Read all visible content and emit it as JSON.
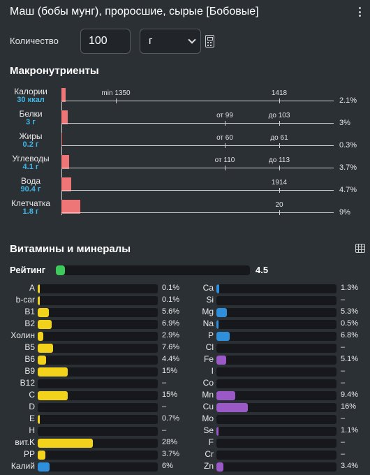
{
  "title": "Маш (бобы мунг), проросшие, сырые [Бобовые]",
  "quantity": {
    "label": "Количество",
    "value": "100",
    "unit": "г"
  },
  "macros": {
    "title": "Макронутриенты",
    "items": [
      {
        "name": "Калории",
        "value": "30 ккал",
        "pct": "2.1%",
        "fraction": 0.021,
        "ticks": [
          {
            "label": "min 1350",
            "pos": 0.2
          },
          {
            "label": "1418",
            "pos": 0.8
          }
        ]
      },
      {
        "name": "Белки",
        "value": "3 г",
        "pct": "3%",
        "fraction": 0.03,
        "ticks": [
          {
            "label": "от 99",
            "pos": 0.6
          },
          {
            "label": "до 103",
            "pos": 0.8
          }
        ]
      },
      {
        "name": "Жиры",
        "value": "0.2 г",
        "pct": "0.3%",
        "fraction": 0.003,
        "ticks": [
          {
            "label": "от 60",
            "pos": 0.6
          },
          {
            "label": "до 61",
            "pos": 0.8
          }
        ]
      },
      {
        "name": "Углеводы",
        "value": "4.1 г",
        "pct": "3.7%",
        "fraction": 0.037,
        "ticks": [
          {
            "label": "от 110",
            "pos": 0.6
          },
          {
            "label": "до 113",
            "pos": 0.8
          }
        ]
      },
      {
        "name": "Вода",
        "value": "90.4 г",
        "pct": "4.7%",
        "fraction": 0.047,
        "ticks": [
          {
            "label": "1914",
            "pos": 0.8
          }
        ]
      },
      {
        "name": "Клетчатка",
        "value": "1.8 г",
        "pct": "9%",
        "fraction": 0.09,
        "ticks": [
          {
            "label": "20",
            "pos": 0.8
          }
        ]
      }
    ]
  },
  "vitamins": {
    "title": "Витамины и минералы",
    "rating_label": "Рейтинг",
    "rating_value": "4.5",
    "rating_fraction": 0.045,
    "colors": {
      "vitamin": "#f2d21b",
      "mineral_blue": "#2f8fdb",
      "mineral_purple": "#9b59c8",
      "rating": "#3ec95d"
    },
    "left": [
      {
        "name": "A",
        "pct": "0.1%",
        "fraction": 0.001,
        "color": "vitamin"
      },
      {
        "name": "b-car",
        "pct": "0.1%",
        "fraction": 0.001,
        "color": "vitamin"
      },
      {
        "name": "B1",
        "pct": "5.6%",
        "fraction": 0.056,
        "color": "vitamin"
      },
      {
        "name": "B2",
        "pct": "6.9%",
        "fraction": 0.069,
        "color": "vitamin"
      },
      {
        "name": "Холин",
        "pct": "2.9%",
        "fraction": 0.029,
        "color": "vitamin"
      },
      {
        "name": "B5",
        "pct": "7.6%",
        "fraction": 0.076,
        "color": "vitamin"
      },
      {
        "name": "B6",
        "pct": "4.4%",
        "fraction": 0.044,
        "color": "vitamin"
      },
      {
        "name": "B9",
        "pct": "15%",
        "fraction": 0.15,
        "color": "vitamin"
      },
      {
        "name": "B12",
        "pct": "–",
        "fraction": 0,
        "color": "vitamin"
      },
      {
        "name": "C",
        "pct": "15%",
        "fraction": 0.15,
        "color": "vitamin"
      },
      {
        "name": "D",
        "pct": "–",
        "fraction": 0,
        "color": "vitamin"
      },
      {
        "name": "E",
        "pct": "0.7%",
        "fraction": 0.007,
        "color": "vitamin"
      },
      {
        "name": "H",
        "pct": "–",
        "fraction": 0,
        "color": "vitamin"
      },
      {
        "name": "вит.K",
        "pct": "28%",
        "fraction": 0.28,
        "color": "vitamin"
      },
      {
        "name": "PP",
        "pct": "3.7%",
        "fraction": 0.037,
        "color": "vitamin"
      },
      {
        "name": "Калий",
        "pct": "6%",
        "fraction": 0.06,
        "color": "mineral_blue"
      }
    ],
    "right": [
      {
        "name": "Ca",
        "pct": "1.3%",
        "fraction": 0.013,
        "color": "mineral_blue"
      },
      {
        "name": "Si",
        "pct": "–",
        "fraction": 0,
        "color": "mineral_blue"
      },
      {
        "name": "Mg",
        "pct": "5.3%",
        "fraction": 0.053,
        "color": "mineral_blue"
      },
      {
        "name": "Na",
        "pct": "0.5%",
        "fraction": 0.005,
        "color": "mineral_blue"
      },
      {
        "name": "P",
        "pct": "6.8%",
        "fraction": 0.068,
        "color": "mineral_blue"
      },
      {
        "name": "Cl",
        "pct": "–",
        "fraction": 0,
        "color": "mineral_blue"
      },
      {
        "name": "Fe",
        "pct": "5.1%",
        "fraction": 0.051,
        "color": "mineral_purple"
      },
      {
        "name": "I",
        "pct": "–",
        "fraction": 0,
        "color": "mineral_purple"
      },
      {
        "name": "Co",
        "pct": "–",
        "fraction": 0,
        "color": "mineral_purple"
      },
      {
        "name": "Mn",
        "pct": "9.4%",
        "fraction": 0.094,
        "color": "mineral_purple"
      },
      {
        "name": "Cu",
        "pct": "16%",
        "fraction": 0.16,
        "color": "mineral_purple"
      },
      {
        "name": "Mo",
        "pct": "–",
        "fraction": 0,
        "color": "mineral_purple"
      },
      {
        "name": "Se",
        "pct": "1.1%",
        "fraction": 0.011,
        "color": "mineral_purple"
      },
      {
        "name": "F",
        "pct": "–",
        "fraction": 0,
        "color": "mineral_purple"
      },
      {
        "name": "Cr",
        "pct": "–",
        "fraction": 0,
        "color": "mineral_purple"
      },
      {
        "name": "Zn",
        "pct": "3.4%",
        "fraction": 0.034,
        "color": "mineral_purple"
      }
    ]
  }
}
